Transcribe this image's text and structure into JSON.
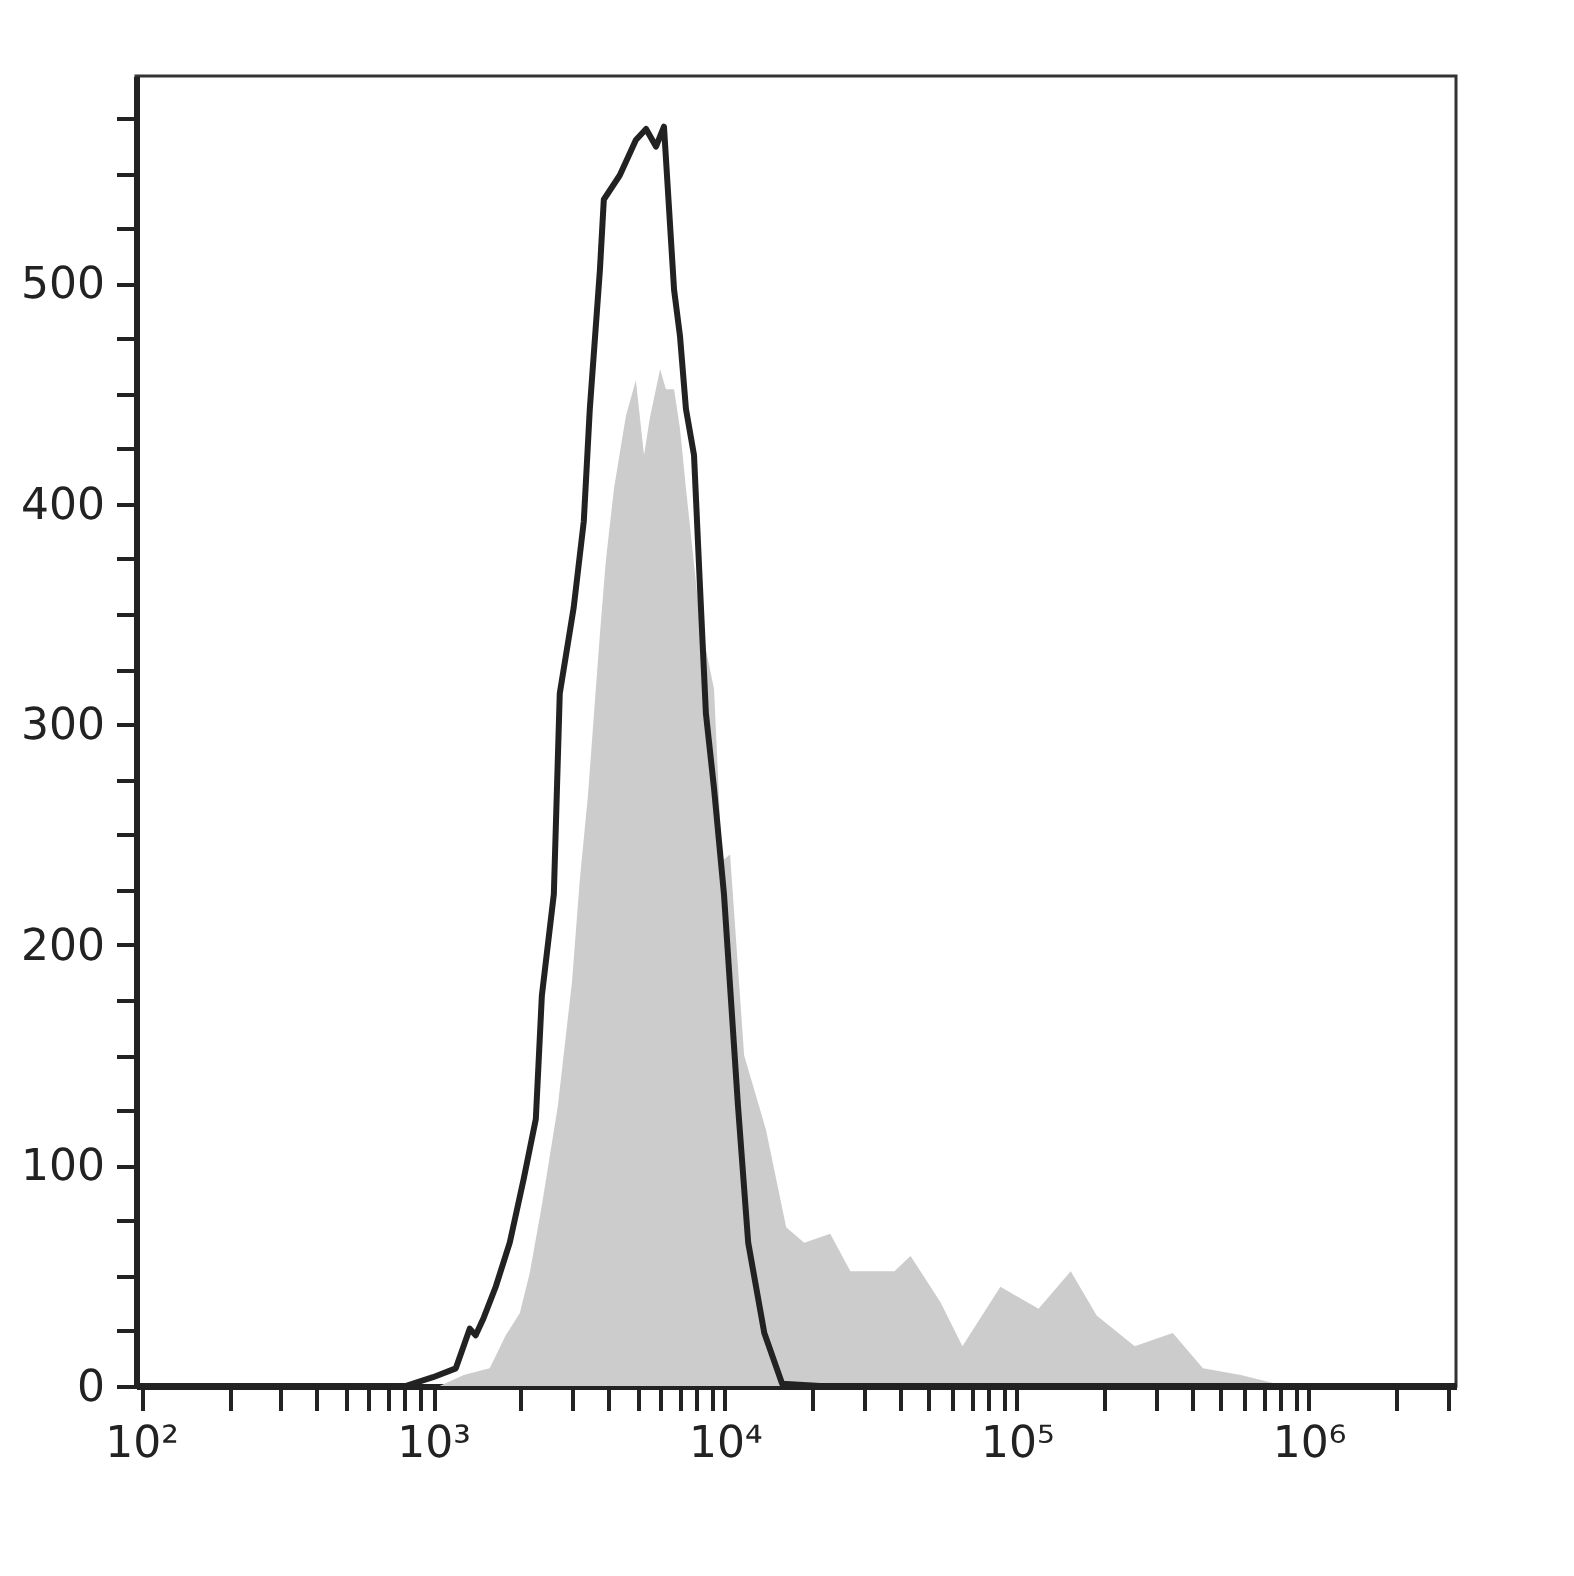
{
  "chart_data": {
    "type": "area",
    "log": "x",
    "xlim": [
      96,
      3200000
    ],
    "ylim": [
      0,
      594
    ],
    "xticks": [
      {
        "value": 100,
        "label": "10²"
      },
      {
        "value": 200,
        "label": null
      },
      {
        "value": 300,
        "label": null
      },
      {
        "value": 400,
        "label": null
      },
      {
        "value": 500,
        "label": null
      },
      {
        "value": 600,
        "label": null
      },
      {
        "value": 700,
        "label": null
      },
      {
        "value": 800,
        "label": null
      },
      {
        "value": 900,
        "label": null
      },
      {
        "value": 1000,
        "label": "10³"
      },
      {
        "value": 2000,
        "label": null
      },
      {
        "value": 3000,
        "label": null
      },
      {
        "value": 4000,
        "label": null
      },
      {
        "value": 5000,
        "label": null
      },
      {
        "value": 6000,
        "label": null
      },
      {
        "value": 7000,
        "label": null
      },
      {
        "value": 8000,
        "label": null
      },
      {
        "value": 9000,
        "label": null
      },
      {
        "value": 10000,
        "label": "10⁴"
      },
      {
        "value": 20000,
        "label": null
      },
      {
        "value": 30000,
        "label": null
      },
      {
        "value": 40000,
        "label": null
      },
      {
        "value": 50000,
        "label": null
      },
      {
        "value": 60000,
        "label": null
      },
      {
        "value": 70000,
        "label": null
      },
      {
        "value": 80000,
        "label": null
      },
      {
        "value": 90000,
        "label": null
      },
      {
        "value": 100000,
        "label": "10⁵"
      },
      {
        "value": 200000,
        "label": null
      },
      {
        "value": 300000,
        "label": null
      },
      {
        "value": 400000,
        "label": null
      },
      {
        "value": 500000,
        "label": null
      },
      {
        "value": 600000,
        "label": null
      },
      {
        "value": 700000,
        "label": null
      },
      {
        "value": 800000,
        "label": null
      },
      {
        "value": 900000,
        "label": null
      },
      {
        "value": 1000000,
        "label": "10⁶"
      },
      {
        "value": 2000000,
        "label": null
      },
      {
        "value": 3000000,
        "label": null
      }
    ],
    "yticks": [
      0,
      {
        "value": 25,
        "label": null
      },
      {
        "value": 50,
        "label": null
      },
      {
        "value": 75,
        "label": null
      },
      100,
      {
        "value": 125,
        "label": null
      },
      {
        "value": 150,
        "label": null
      },
      {
        "value": 175,
        "label": null
      },
      200,
      {
        "value": 225,
        "label": null
      },
      {
        "value": 250,
        "label": null
      },
      {
        "value": 275,
        "label": null
      },
      300,
      {
        "value": 325,
        "label": null
      },
      {
        "value": 350,
        "label": null
      },
      {
        "value": 375,
        "label": null
      },
      400,
      {
        "value": 425,
        "label": null
      },
      {
        "value": 450,
        "label": null
      },
      {
        "value": 475,
        "label": null
      },
      500,
      {
        "value": 525,
        "label": null
      },
      {
        "value": 550,
        "label": null
      },
      {
        "value": 575,
        "label": null
      }
    ],
    "series": [
      {
        "color": "#cccccc",
        "x": [
          96,
          1054,
          1274,
          1564,
          1775,
          1982,
          2143,
          2360,
          2677,
          2992,
          3186,
          3396,
          3731,
          3908,
          4169,
          4581,
          4955,
          5284,
          5534,
          5998,
          6281,
          6698,
          7019,
          7356,
          8220,
          9180,
          9772,
          10420,
          11640,
          13840,
          16220,
          18700,
          22960,
          26920,
          38100,
          43250,
          54810,
          65160,
          87900,
          118800,
          153100,
          187900,
          253700,
          342500,
          434500,
          586100,
          829600,
          1888000,
          3200000
        ],
        "values": [
          0,
          0,
          5,
          8,
          23,
          33,
          51,
          82,
          127,
          183,
          230,
          268,
          341,
          374,
          407,
          440,
          456,
          422,
          439,
          461,
          452,
          452,
          434,
          407,
          347,
          316,
          238,
          241,
          150,
          116,
          72,
          65,
          69,
          52,
          52,
          59,
          38,
          18,
          45,
          35,
          52,
          32,
          18,
          24,
          8,
          5,
          0,
          0,
          0
        ]
      },
      {
        "type": "line",
        "color": "#222222",
        "x": [
          96,
          805,
          1000,
          1197,
          1336,
          1400,
          1492,
          1640,
          1832,
          2046,
          2250,
          2360,
          2594,
          2718,
          3034,
          3285,
          3445,
          3731,
          3848,
          4365,
          4955,
          5370,
          5807,
          6185,
          6698,
          7019,
          7356,
          7840,
          8220,
          8610,
          9180,
          9930,
          11090,
          12020,
          13650,
          15710,
          21230,
          3200000
        ],
        "values": [
          0,
          0,
          4,
          8,
          26,
          23,
          31,
          45,
          65,
          94,
          121,
          177,
          223,
          314,
          353,
          392,
          443,
          506,
          538,
          549,
          565,
          570,
          562,
          571,
          497,
          476,
          443,
          422,
          362,
          305,
          271,
          223,
          127,
          65,
          24,
          1,
          0,
          0
        ]
      }
    ]
  }
}
